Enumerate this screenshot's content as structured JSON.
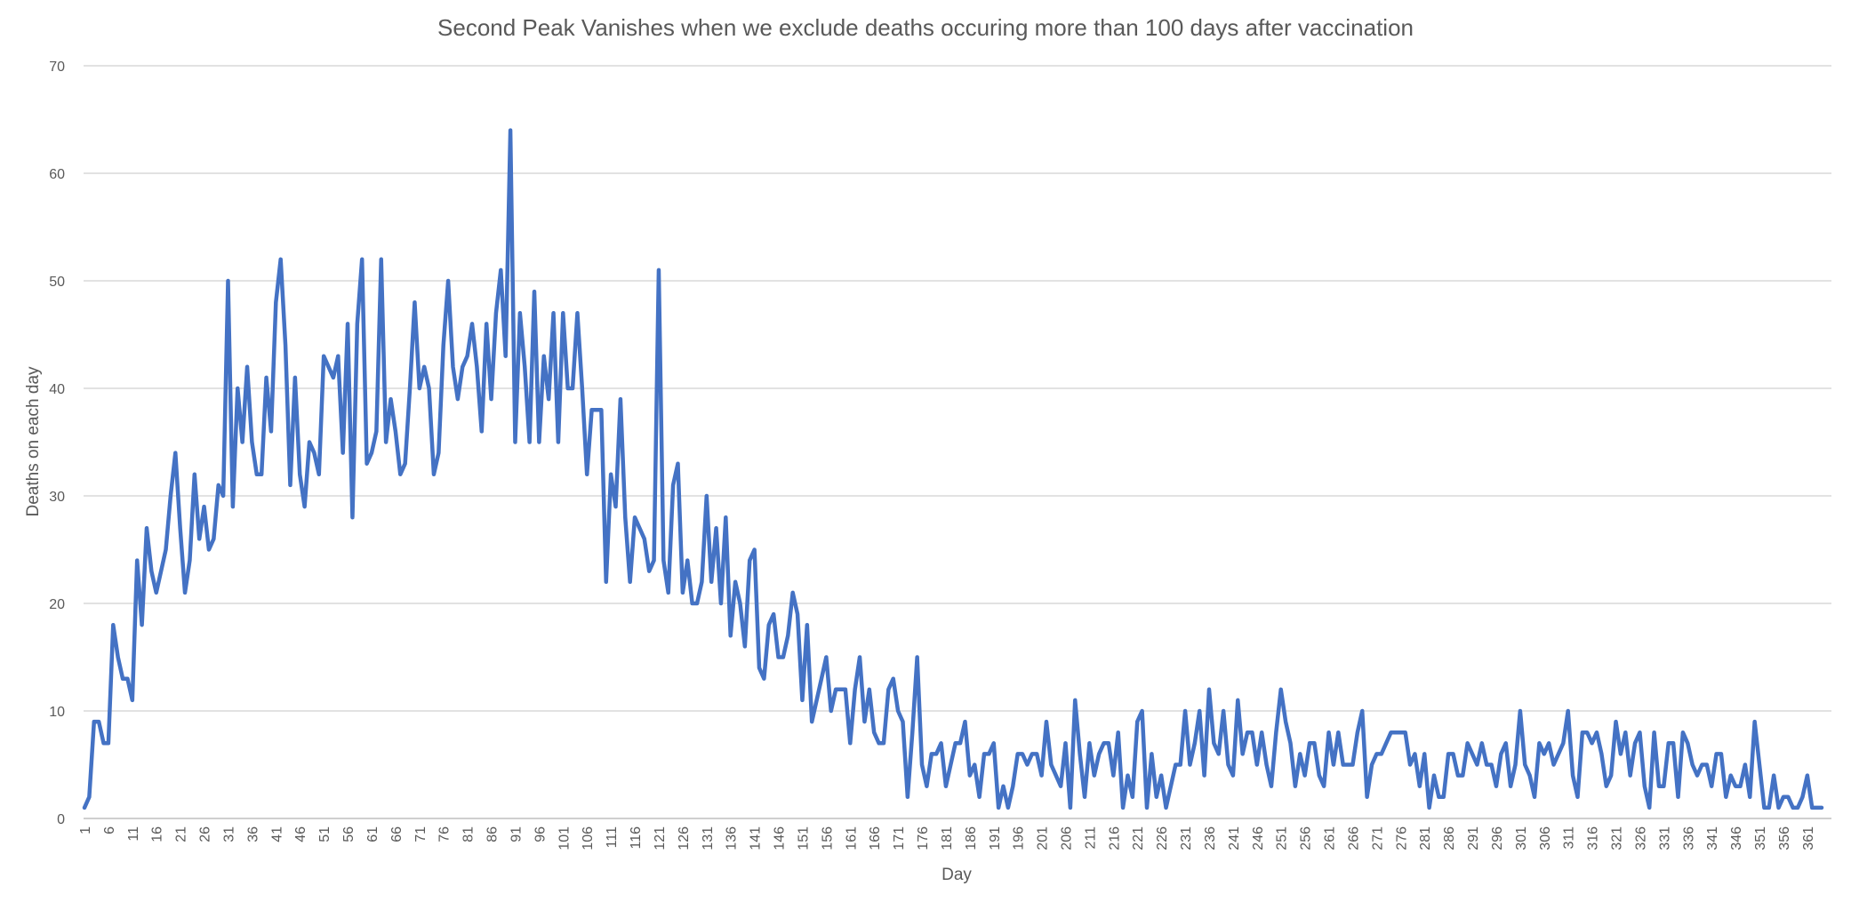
{
  "chart_data": {
    "type": "line",
    "title": "Second Peak Vanishes when we exclude deaths occuring more than 100 days after vaccination",
    "xlabel": "Day",
    "ylabel": "Deaths on each day",
    "ylim": [
      0,
      70
    ],
    "yticks": [
      0,
      10,
      20,
      30,
      40,
      50,
      60,
      70
    ],
    "xlim": [
      1,
      364
    ],
    "xticks": [
      1,
      6,
      11,
      16,
      21,
      26,
      31,
      36,
      41,
      46,
      51,
      56,
      61,
      66,
      71,
      76,
      81,
      86,
      91,
      96,
      101,
      106,
      111,
      116,
      121,
      126,
      131,
      136,
      141,
      146,
      151,
      156,
      161,
      166,
      171,
      176,
      181,
      186,
      191,
      196,
      201,
      206,
      211,
      216,
      221,
      226,
      231,
      236,
      241,
      246,
      251,
      256,
      261,
      266,
      271,
      276,
      281,
      286,
      291,
      296,
      301,
      306,
      311,
      316,
      321,
      326,
      331,
      336,
      341,
      346,
      351,
      356,
      361
    ],
    "grid": true,
    "legend": "none",
    "series_color": "#4472c4",
    "series": [
      {
        "x_start": 1,
        "values": [
          1,
          2,
          9,
          9,
          7,
          7,
          18,
          15,
          13,
          13,
          11,
          24,
          18,
          27,
          23,
          21,
          23,
          25,
          30,
          34,
          27,
          21,
          24,
          32,
          26,
          29,
          25,
          26,
          31,
          30,
          50,
          29,
          40,
          35,
          42,
          35,
          32,
          32,
          41,
          36,
          48,
          52,
          44,
          31,
          41,
          32,
          29,
          35,
          34,
          32,
          43,
          42,
          41,
          43,
          34,
          46,
          28,
          46,
          52,
          33,
          34,
          36,
          52,
          35,
          39,
          36,
          32,
          33,
          40,
          48,
          40,
          42,
          40,
          32,
          34,
          44,
          50,
          42,
          39,
          42,
          43,
          46,
          42,
          36,
          46,
          39,
          47,
          51,
          43,
          64,
          35,
          47,
          42,
          35,
          49,
          35,
          43,
          39,
          47,
          35,
          47,
          40,
          40,
          47,
          40,
          32,
          38,
          38,
          38,
          22,
          32,
          29,
          39,
          28,
          22,
          28,
          27,
          26,
          23,
          24,
          51,
          24,
          21,
          31,
          33,
          21,
          24,
          20,
          20,
          22,
          30,
          22,
          27,
          20,
          28,
          17,
          22,
          20,
          16,
          24,
          25,
          14,
          13,
          18,
          19,
          15,
          15,
          17,
          21,
          19,
          11,
          18,
          9,
          11,
          13,
          15,
          10,
          12,
          12,
          12,
          7,
          12,
          15,
          9,
          12,
          8,
          7,
          7,
          12,
          13,
          10,
          9,
          2,
          8,
          15,
          5,
          3,
          6,
          6,
          7,
          3,
          5,
          7,
          7,
          9,
          4,
          5,
          2,
          6,
          6,
          7,
          1,
          3,
          1,
          3,
          6,
          6,
          5,
          6,
          6,
          4,
          9,
          5,
          4,
          3,
          7,
          1,
          11,
          6,
          2,
          7,
          4,
          6,
          7,
          7,
          4,
          8,
          1,
          4,
          2,
          9,
          10,
          1,
          6,
          2,
          4,
          1,
          3,
          5,
          5,
          10,
          5,
          7,
          10,
          4,
          12,
          7,
          6,
          10,
          5,
          4,
          11,
          6,
          8,
          8,
          5,
          8,
          5,
          3,
          8,
          12,
          9,
          7,
          3,
          6,
          4,
          7,
          7,
          4,
          3,
          8,
          5,
          8,
          5,
          5,
          5,
          8,
          10,
          2,
          5,
          6,
          6,
          7,
          8,
          8,
          8,
          8,
          5,
          6,
          3,
          6,
          1,
          4,
          2,
          2,
          6,
          6,
          4,
          4,
          7,
          6,
          5,
          7,
          5,
          5,
          3,
          6,
          7,
          3,
          5,
          10,
          5,
          4,
          2,
          7,
          6,
          7,
          5,
          6,
          7,
          10,
          4,
          2,
          8,
          8,
          7,
          8,
          6,
          3,
          4,
          9,
          6,
          8,
          4,
          7,
          8,
          3,
          1,
          8,
          3,
          3,
          7,
          7,
          2,
          8,
          7,
          5,
          4,
          5,
          5,
          3,
          6,
          6,
          2,
          4,
          3,
          3,
          5,
          2,
          9,
          5,
          1,
          1,
          4,
          1,
          2,
          2,
          1,
          1,
          2,
          4,
          1,
          1,
          1
        ]
      }
    ]
  }
}
